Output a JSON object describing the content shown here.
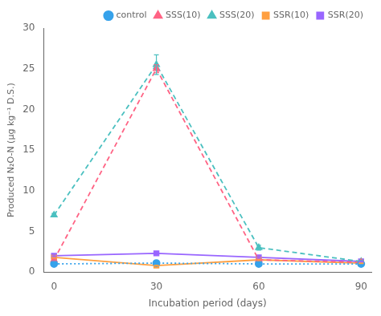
{
  "chart_data": {
    "type": "line",
    "xlabel": "Incubation period (days)",
    "ylabel": "Produced N₂O-N (μg kg⁻¹ D.S.)",
    "x": [
      0,
      30,
      60,
      90
    ],
    "series": [
      {
        "name": "control",
        "values": [
          1.0,
          1.1,
          1.0,
          1.0
        ],
        "yerr": [
          0.05,
          0.05,
          0.05,
          0.05
        ],
        "marker": "circle",
        "line_style": "dotted"
      },
      {
        "name": "SSS(10)",
        "values": [
          1.5,
          25.0,
          1.5,
          1.2
        ],
        "yerr": [
          0.1,
          0.5,
          0.1,
          0.1
        ],
        "marker": "triangle",
        "line_style": "dashed"
      },
      {
        "name": "SSS(20)",
        "values": [
          7.0,
          25.5,
          3.0,
          1.3
        ],
        "yerr": [
          0.2,
          1.2,
          0.3,
          0.1
        ],
        "marker": "triangle",
        "line_style": "dashed"
      },
      {
        "name": "SSR(10)",
        "values": [
          1.8,
          0.8,
          1.5,
          1.1
        ],
        "yerr": [
          0.1,
          0.05,
          0.1,
          0.05
        ],
        "marker": "square",
        "line_style": "solid"
      },
      {
        "name": "SSR(20)",
        "values": [
          2.0,
          2.3,
          1.8,
          1.3
        ],
        "yerr": [
          0.1,
          0.15,
          0.1,
          0.05
        ],
        "marker": "square",
        "line_style": "solid"
      }
    ],
    "xlim": [
      -3,
      93
    ],
    "ylim": [
      0,
      30
    ],
    "xticks": [
      0,
      30,
      60,
      90
    ],
    "yticks": [
      0,
      5,
      10,
      15,
      20,
      25,
      30
    ],
    "grid": false,
    "legend": "upper right"
  }
}
